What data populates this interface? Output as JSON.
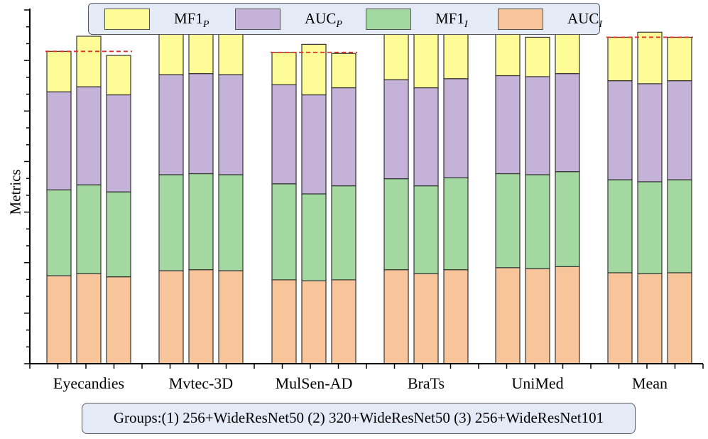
{
  "chart_data": {
    "type": "stacked-bar",
    "ylabel": "Metrics",
    "ylim": [
      0,
      3.5
    ],
    "categories": [
      "Eyecandies",
      "Mvtec-3D",
      "MulSen-AD",
      "BraTs",
      "UniMed",
      "Mean"
    ],
    "bars_per_category": 3,
    "series": [
      {
        "name": "AUC",
        "subscript": "I",
        "color": "#f8c49a",
        "values": [
          [
            0.87,
            0.89,
            0.86
          ],
          [
            0.92,
            0.93,
            0.92
          ],
          [
            0.83,
            0.82,
            0.83
          ],
          [
            0.93,
            0.89,
            0.93
          ],
          [
            0.95,
            0.94,
            0.96
          ],
          [
            0.9,
            0.89,
            0.9
          ]
        ]
      },
      {
        "name": "MF1",
        "subscript": "I",
        "color": "#a3d8a0",
        "values": [
          [
            0.85,
            0.88,
            0.84
          ],
          [
            0.95,
            0.95,
            0.95
          ],
          [
            0.95,
            0.86,
            0.93
          ],
          [
            0.9,
            0.87,
            0.91
          ],
          [
            0.93,
            0.93,
            0.94
          ],
          [
            0.92,
            0.91,
            0.92
          ]
        ]
      },
      {
        "name": "AUC",
        "subscript": "P",
        "color": "#c4b2d8",
        "values": [
          [
            0.97,
            0.97,
            0.96
          ],
          [
            0.99,
            0.99,
            0.99
          ],
          [
            0.98,
            0.98,
            0.97
          ],
          [
            0.98,
            0.97,
            0.98
          ],
          [
            0.97,
            0.97,
            0.97
          ],
          [
            0.98,
            0.97,
            0.98
          ]
        ]
      },
      {
        "name": "MF1",
        "subscript": "P",
        "color": "#fdfc97",
        "values": [
          [
            0.4,
            0.5,
            0.39
          ],
          [
            0.45,
            0.46,
            0.45
          ],
          [
            0.32,
            0.5,
            0.34
          ],
          [
            0.54,
            0.67,
            0.53
          ],
          [
            0.44,
            0.39,
            0.46
          ],
          [
            0.43,
            0.51,
            0.43
          ]
        ]
      }
    ],
    "reference_line": {
      "style": "dashed",
      "color": "#e0302a",
      "meaning": "total of group (1)"
    },
    "legend": {
      "placement": "top"
    },
    "note": "Groups:(1) 256+WideResNet50 (2) 320+WideResNet50 (3) 256+WideResNet101"
  }
}
